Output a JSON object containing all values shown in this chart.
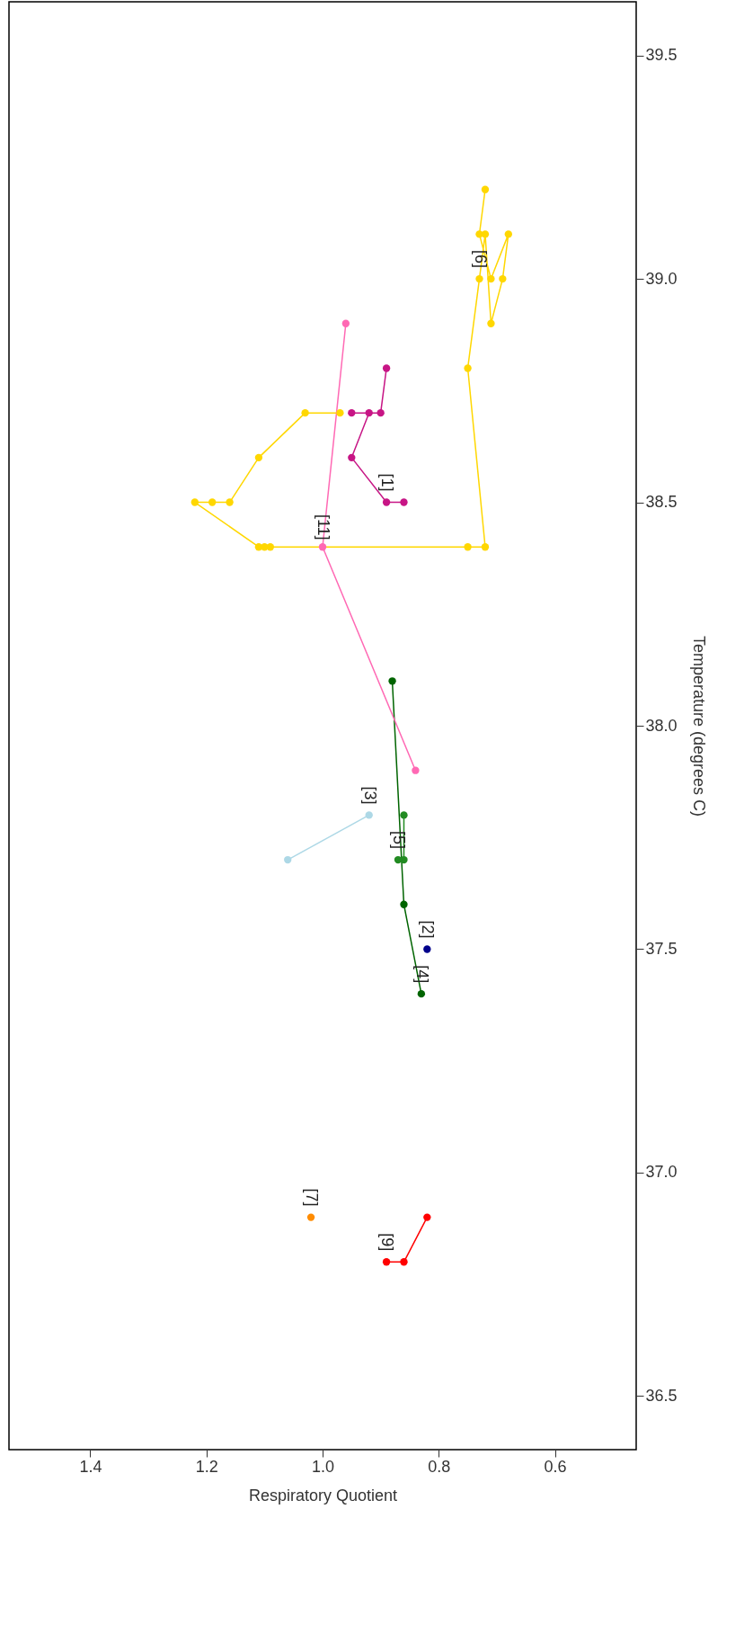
{
  "chart_data": {
    "type": "line",
    "xlabel": "Respiratory Quotient",
    "ylabel": "Temperature (degrees C)",
    "marker": "circle",
    "grid": false,
    "xlim": [
      1.54,
      0.46
    ],
    "xticks": [
      1.4,
      1.2,
      {
        "value": 1,
        "label": "1.0"
      },
      0.8,
      0.6
    ],
    "ylim": [
      36.38,
      39.62
    ],
    "yticks": [
      36.5,
      {
        "value": 37,
        "label": "37.0"
      },
      37.5,
      {
        "value": 38,
        "label": "38.0"
      },
      38.5,
      {
        "value": 39,
        "label": "39.0"
      },
      39.5
    ],
    "series": [
      {
        "color": "#c71585",
        "x": [
          0.89,
          0.9,
          0.95,
          0.92,
          0.95,
          0.89,
          0.86
        ],
        "values": [
          38.8,
          38.7,
          38.7,
          38.7,
          38.6,
          38.5,
          38.5
        ]
      },
      {
        "color": "#00008b",
        "x": [
          0.82
        ],
        "values": [
          37.5
        ]
      },
      {
        "color": "#add8e6",
        "x": [
          0.92,
          1.06
        ],
        "values": [
          37.8,
          37.7
        ]
      },
      {
        "color": "#006400",
        "x": [
          0.88,
          0.86,
          0.83
        ],
        "values": [
          38.1,
          37.6,
          37.4
        ]
      },
      {
        "color": "#228b22",
        "x": [
          0.86,
          0.86,
          0.87
        ],
        "values": [
          37.8,
          37.7,
          37.7
        ]
      },
      {
        "color": "#ffd700",
        "x": [
          0.72,
          0.73,
          0.71,
          0.68,
          0.69,
          0.71,
          0.72,
          0.73,
          0.75,
          0.72,
          0.75,
          1.09,
          1.1,
          1.11,
          1.22,
          1.19,
          1.16,
          1.11,
          1.03,
          0.97
        ],
        "values": [
          39.2,
          39.1,
          39.0,
          39.1,
          39.0,
          38.9,
          39.1,
          39.0,
          38.8,
          38.4,
          38.4,
          38.4,
          38.4,
          38.4,
          38.5,
          38.5,
          38.5,
          38.6,
          38.7,
          38.7
        ]
      },
      {
        "color": "#ff8c00",
        "x": [
          1.02
        ],
        "values": [
          36.9
        ]
      },
      {
        "color": "#ff0000",
        "x": [
          0.82,
          0.86,
          0.89
        ],
        "values": [
          36.9,
          36.8,
          36.8
        ]
      },
      {
        "color": "#ff69b4",
        "x": [
          0.96,
          1.0,
          0.84
        ],
        "values": [
          38.9,
          38.4,
          37.9
        ]
      }
    ],
    "annotations": [
      {
        "text": "[1]",
        "x": 0.89,
        "y": 38.5
      },
      {
        "text": "[2]",
        "x": 0.82,
        "y": 37.5
      },
      {
        "text": "[3]",
        "x": 0.92,
        "y": 37.8
      },
      {
        "text": "[4]",
        "x": 0.83,
        "y": 37.4
      },
      {
        "text": "[5]",
        "x": 0.87,
        "y": 37.7
      },
      {
        "text": "[6]",
        "x": 0.73,
        "y": 39.0
      },
      {
        "text": "[7]",
        "x": 1.02,
        "y": 36.9
      },
      {
        "text": "[9]",
        "x": 0.89,
        "y": 36.8
      },
      {
        "text": "[11]",
        "x": 1.0,
        "y": 38.4
      }
    ]
  }
}
